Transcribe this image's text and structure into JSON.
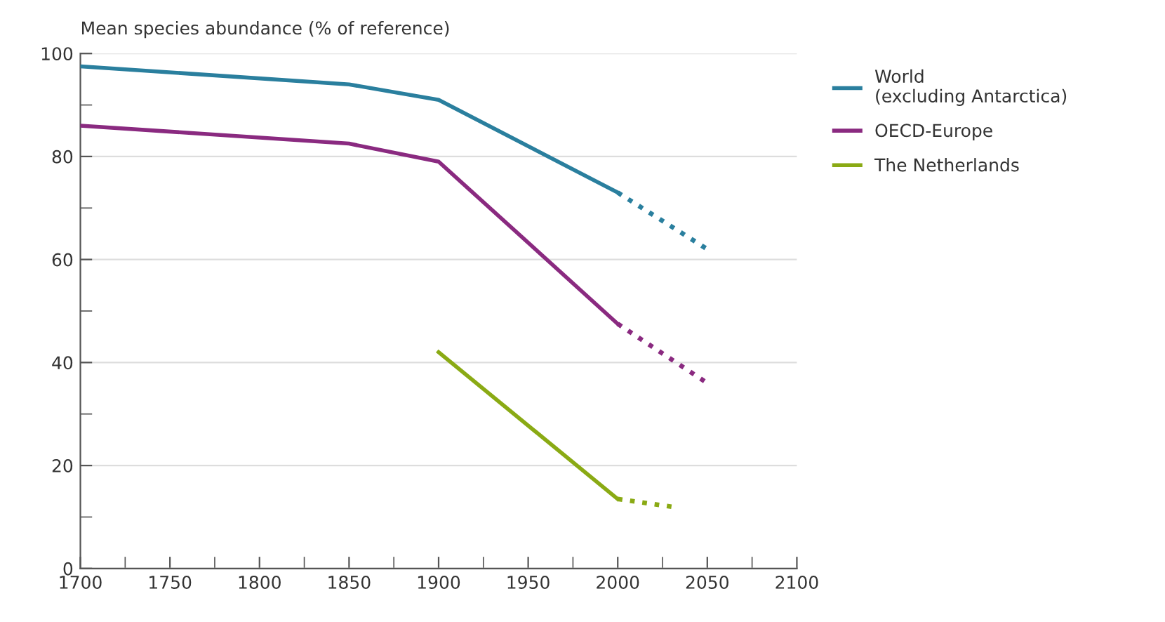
{
  "chart_data": {
    "type": "line",
    "ylabel": "Mean species abundance (% of reference)",
    "xlim": [
      1700,
      2100
    ],
    "ylim": [
      0,
      100
    ],
    "xticks": [
      1700,
      {
        "value": 1725,
        "label": null
      },
      1750,
      {
        "value": 1775,
        "label": null
      },
      1800,
      {
        "value": 1825,
        "label": null
      },
      1850,
      {
        "value": 1875,
        "label": null
      },
      1900,
      {
        "value": 1925,
        "label": null
      },
      1950,
      {
        "value": 1975,
        "label": null
      },
      2000,
      {
        "value": 2025,
        "label": null
      },
      2050,
      {
        "value": 2075,
        "label": null
      },
      2100
    ],
    "yticks": [
      0,
      {
        "value": 10,
        "label": null
      },
      20,
      {
        "value": 30,
        "label": null
      },
      40,
      {
        "value": 50,
        "label": null
      },
      60,
      {
        "value": 70,
        "label": null
      },
      80,
      {
        "value": 90,
        "label": null
      },
      100
    ],
    "grid": "y",
    "legend": "right",
    "marker": "none",
    "series": [
      {
        "name": "World\n(excluding Antarctica)",
        "color": "#2a7f9e",
        "x": [
          1700,
          1850,
          1900,
          2000
        ],
        "values": [
          97.5,
          94,
          91,
          73
        ],
        "line_style": "solid"
      },
      {
        "name": "OECD-Europe",
        "color": "#8a2a80",
        "x": [
          1700,
          1850,
          1900,
          2000
        ],
        "values": [
          86,
          82.5,
          79,
          47.5
        ],
        "line_style": "solid"
      },
      {
        "name": "The Netherlands",
        "color": "#8aaa14",
        "x": [
          1900,
          2000
        ],
        "values": [
          42,
          13.5
        ],
        "line_style": "solid"
      },
      {
        "color": "#2a7f9e",
        "x": [
          2000,
          2050
        ],
        "values": [
          73,
          62
        ],
        "line_style": "dotted"
      },
      {
        "color": "#8a2a80",
        "x": [
          2000,
          2050
        ],
        "values": [
          47.5,
          36
        ],
        "line_style": "dotted"
      },
      {
        "color": "#8aaa14",
        "x": [
          2000,
          2030
        ],
        "values": [
          13.5,
          12
        ],
        "line_style": "dotted"
      }
    ]
  }
}
